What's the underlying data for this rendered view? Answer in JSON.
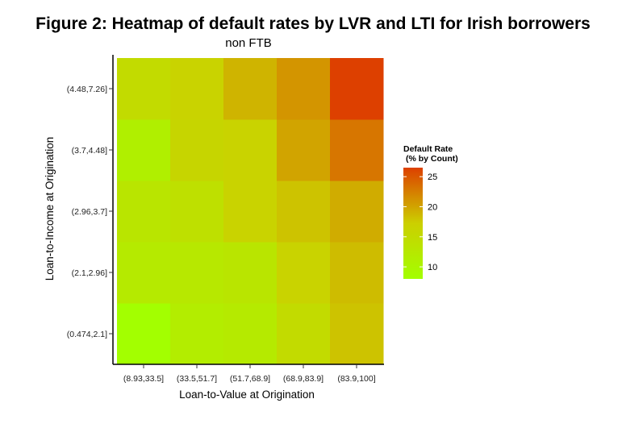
{
  "figure": {
    "title": "Figure 2: Heatmap of default rates by LVR and LTI for Irish borrowers"
  },
  "chart_data": {
    "type": "heatmap",
    "title": "non FTB",
    "xlabel": "Loan-to-Value at Origination",
    "ylabel": "Loan-to-Income at Origination",
    "x_categories": [
      "(8.93,33.5]",
      "(33.5,51.7]",
      "(51.7,68.9]",
      "(68.9,83.9]",
      "(83.9,100]"
    ],
    "y_categories": [
      "(0.474,2.1]",
      "(2.1,2.96]",
      "(2.96,3.7]",
      "(3.7,4.48]",
      "(4.48,7.26]"
    ],
    "values": [
      [
        8,
        11.5,
        12,
        15,
        18
      ],
      [
        12,
        12.5,
        13,
        16.5,
        18.5
      ],
      [
        13,
        14,
        16.5,
        18,
        19.5
      ],
      [
        11,
        16,
        16.5,
        20,
        23
      ],
      [
        15,
        16.5,
        19,
        21,
        26.5
      ]
    ],
    "legend": {
      "title_line1": "Default Rate",
      "title_line2": "(% by Count)",
      "ticks": [
        10,
        15,
        20,
        25
      ],
      "range": [
        8,
        26.5
      ],
      "colors": [
        "#a3ff00",
        "#cccf00",
        "#dd4000"
      ],
      "placement": "right"
    }
  }
}
